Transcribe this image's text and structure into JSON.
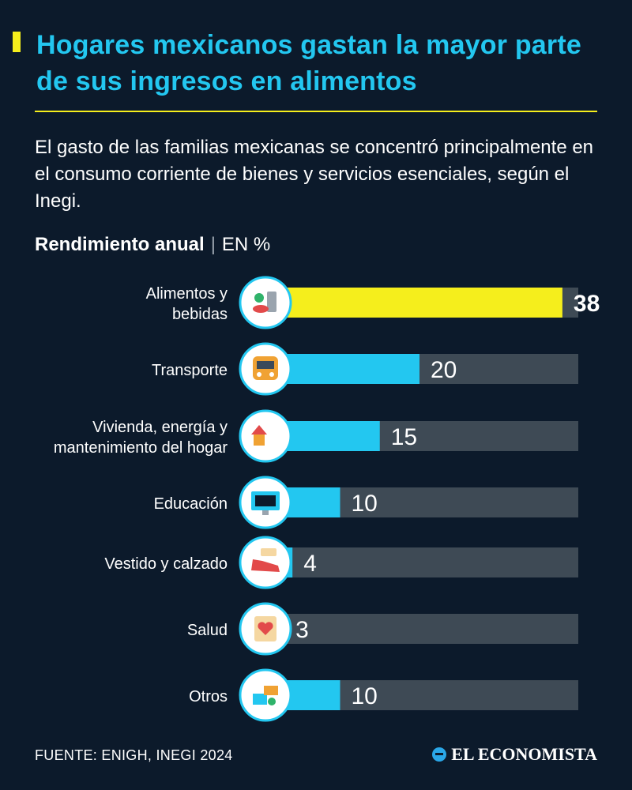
{
  "header": {
    "title": "Hogares mexicanos gastan la mayor parte de sus ingresos en alimentos",
    "subtitle": "El gasto de las familias mexicanas se concentró principalmente en el consumo corriente de bienes y servicios esenciales, según el Inegi."
  },
  "chart_header": {
    "title": "Rendimiento anual",
    "separator": "|",
    "unit": "EN %"
  },
  "chart_data": {
    "type": "bar",
    "orientation": "horizontal",
    "categories": [
      "Alimentos y bebidas",
      "Transporte",
      "Vivienda, energía y mantenimiento del hogar",
      "Educación",
      "Vestido y calzado",
      "Salud",
      "Otros"
    ],
    "category_lines": [
      [
        "Alimentos y",
        "bebidas"
      ],
      [
        "Transporte"
      ],
      [
        "Vivienda, energía y",
        "mantenimiento del hogar"
      ],
      [
        "Educación"
      ],
      [
        "Vestido y calzado"
      ],
      [
        "Salud"
      ],
      [
        "Otros"
      ]
    ],
    "values": [
      38,
      20,
      15,
      10,
      4,
      3,
      10
    ],
    "icons": [
      "food-icon",
      "train-icon",
      "home-tools-icon",
      "computer-icon",
      "shoe-icon",
      "health-icon",
      "misc-icon"
    ],
    "xlim": [
      0,
      40
    ],
    "highlight_index": 0,
    "colors": {
      "highlight": "#f5ee1c",
      "bar": "#23c7f0",
      "track": "#3e4a55",
      "background": "#0c1a2b"
    }
  },
  "footer": {
    "source": "FUENTE: ENIGH, INEGI 2024",
    "brand": "EL ECONOMISTA"
  }
}
